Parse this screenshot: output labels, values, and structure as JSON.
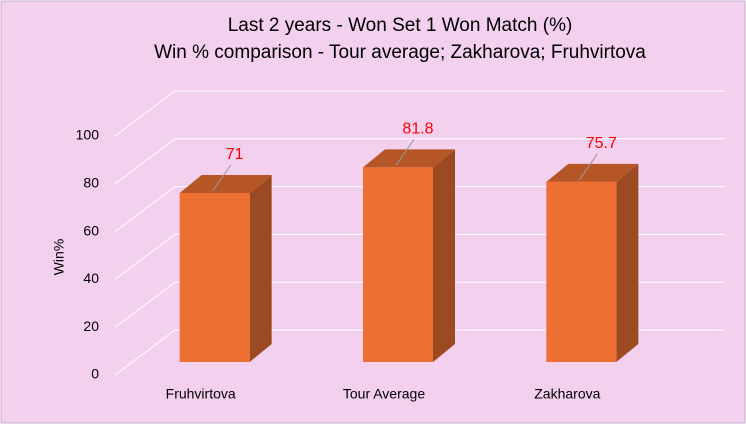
{
  "chart_data": {
    "type": "bar3d",
    "title": "Last 2 years - Won Set 1 Won Match (%)",
    "subtitle": "Win % comparison - Tour average; Zakharova; Fruhvirtova",
    "y_label": "Win%",
    "categories": [
      "Fruhvirtova",
      "Tour Average",
      "Zakharova"
    ],
    "values": [
      71,
      81.8,
      75.7
    ],
    "color": "#ed7032",
    "label_color": "#ff0000",
    "ylim": [
      0,
      100
    ],
    "yticks": [
      0,
      20,
      40,
      60,
      80,
      100
    ],
    "grid": true
  }
}
